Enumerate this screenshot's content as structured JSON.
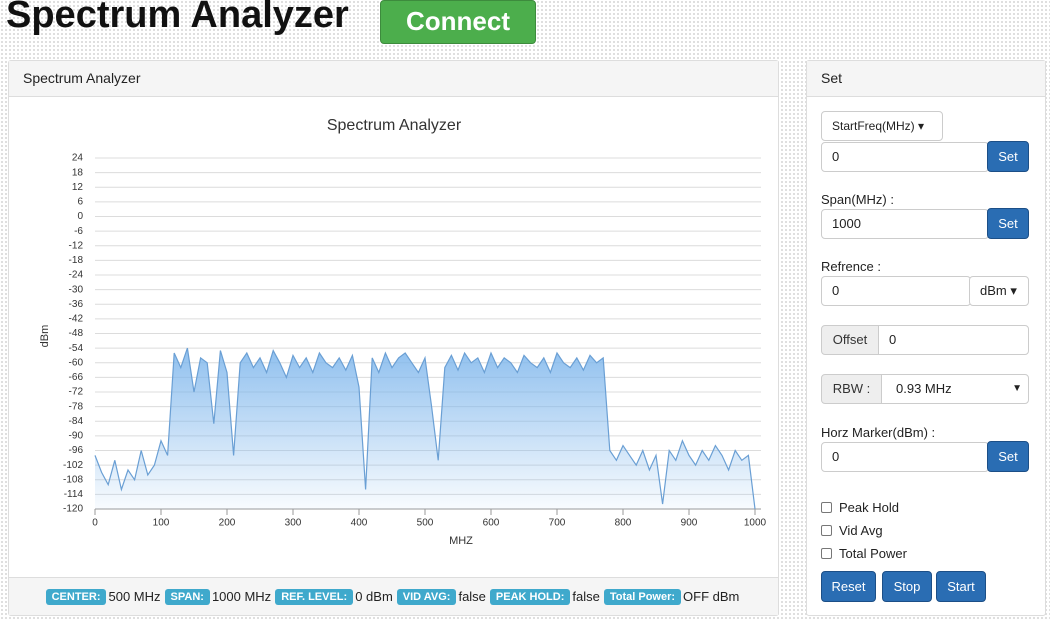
{
  "header": {
    "title": "Spectrum Analyzer",
    "button": "Connect"
  },
  "chart_panel": {
    "heading": "Spectrum Analyzer",
    "status": [
      {
        "label": "CENTER:",
        "value": "500 MHz"
      },
      {
        "label": "SPAN:",
        "value": "1000 MHz"
      },
      {
        "label": "REF. LEVEL:",
        "value": "0 dBm"
      },
      {
        "label": "VID AVG:",
        "value": "false"
      },
      {
        "label": "PEAK HOLD:",
        "value": "false"
      },
      {
        "label": "Total Power:",
        "value": "OFF dBm"
      }
    ]
  },
  "chart_data": {
    "type": "line",
    "title": "Spectrum Analyzer",
    "x_label": "MHZ",
    "y_label": "dBm",
    "color": "#6a9fd4",
    "x": [
      0,
      10,
      20,
      30,
      40,
      50,
      60,
      70,
      80,
      90,
      100,
      110,
      120,
      130,
      140,
      150,
      160,
      170,
      180,
      190,
      200,
      210,
      220,
      230,
      240,
      250,
      260,
      270,
      280,
      290,
      300,
      310,
      320,
      330,
      340,
      350,
      360,
      370,
      380,
      390,
      400,
      410,
      420,
      430,
      440,
      450,
      460,
      470,
      480,
      490,
      500,
      510,
      520,
      530,
      540,
      550,
      560,
      570,
      580,
      590,
      600,
      610,
      620,
      630,
      640,
      650,
      660,
      670,
      680,
      690,
      700,
      710,
      720,
      730,
      740,
      750,
      760,
      770,
      780,
      790,
      800,
      810,
      820,
      830,
      840,
      850,
      860,
      870,
      880,
      890,
      900,
      910,
      920,
      930,
      940,
      950,
      960,
      970,
      980,
      990,
      1000
    ],
    "values": [
      -98,
      -105,
      -110,
      -100,
      -112,
      -104,
      -108,
      -96,
      -106,
      -102,
      -92,
      -98,
      -56,
      -62,
      -54,
      -72,
      -58,
      -60,
      -85,
      -55,
      -64,
      -98,
      -60,
      -56,
      -62,
      -58,
      -64,
      -55,
      -60,
      -66,
      -57,
      -62,
      -58,
      -64,
      -56,
      -60,
      -62,
      -58,
      -63,
      -57,
      -70,
      -112,
      -58,
      -64,
      -56,
      -62,
      -58,
      -56,
      -60,
      -64,
      -58,
      -78,
      -100,
      -62,
      -57,
      -63,
      -56,
      -60,
      -58,
      -64,
      -56,
      -62,
      -58,
      -60,
      -64,
      -57,
      -60,
      -62,
      -58,
      -64,
      -56,
      -60,
      -62,
      -58,
      -63,
      -57,
      -60,
      -58,
      -96,
      -100,
      -94,
      -98,
      -102,
      -96,
      -104,
      -98,
      -118,
      -96,
      -100,
      -92,
      -98,
      -102,
      -96,
      -100,
      -94,
      -98,
      -104,
      -96,
      -100,
      -98,
      -120
    ],
    "xlim": [
      0,
      1000
    ],
    "xticks": [
      0,
      100,
      200,
      300,
      400,
      500,
      600,
      700,
      800,
      900,
      1000
    ],
    "ylim": [
      -120,
      24
    ],
    "yticks": [
      24,
      18,
      12,
      6,
      0,
      -6,
      -12,
      -18,
      -24,
      -30,
      -36,
      -42,
      -48,
      -54,
      -60,
      -66,
      -72,
      -78,
      -84,
      -90,
      -96,
      -102,
      -108,
      -114,
      -120
    ],
    "grid": true
  },
  "settings": {
    "heading": "Set",
    "start_freq": {
      "dropdown": "StartFreq(MHz)",
      "value": "0",
      "button": "Set"
    },
    "span": {
      "label": "Span(MHz) :",
      "value": "1000",
      "button": "Set"
    },
    "reference": {
      "label": "Refrence :",
      "value": "0",
      "unit": "dBm"
    },
    "offset": {
      "label": "Offset",
      "value": "0"
    },
    "rbw": {
      "label": "RBW :",
      "value": "0.93 MHz"
    },
    "horz_marker": {
      "label": "Horz Marker(dBm) :",
      "value": "0",
      "button": "Set"
    },
    "checkboxes": [
      "Peak Hold",
      "Vid Avg",
      "Total Power"
    ],
    "buttons": [
      "Reset",
      "Stop",
      "Start"
    ]
  }
}
